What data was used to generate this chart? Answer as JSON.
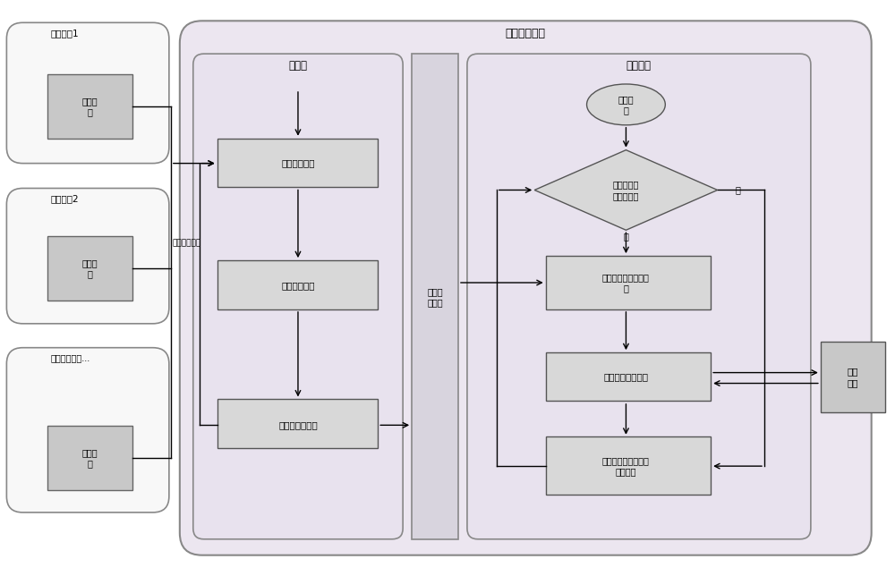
{
  "title_serial_process": "串口服务进程",
  "title_main_thread": "主线程",
  "title_output_thread": "输出线程",
  "label_user_process1": "用户进程1",
  "label_user_process2": "用户进程2",
  "label_other_process": "其它用户进程...",
  "label_output_module": "输出模\n块",
  "label_sync_output": "同步输出内容",
  "label_respond_event": "响应输入事件",
  "label_receive_input": "接收输入内容",
  "label_store_buffer": "将内容存入缓存",
  "label_data_buffer_queue": "数据缓\n存队列",
  "label_thread_start": "线程启\n动",
  "label_check_queue": "缓存队列中\n是否有数据",
  "label_yes": "是",
  "label_no": "否",
  "label_read_first": "读取队列的第一条数\n据",
  "label_output_port": "将数据输出到串口",
  "label_wait_data": "等待数据缓存队列中\n存入数据",
  "label_port_device": "串口\n设备",
  "bg_color": "#ffffff",
  "outer_facecolor": "#ece6f0",
  "main_thread_facecolor": "#e8e2ee",
  "output_thread_facecolor": "#e8e2ee",
  "databuf_facecolor": "#d8d4de",
  "user_box_facecolor": "#f8f8f8",
  "flow_box_facecolor": "#d8d8d8",
  "port_device_facecolor": "#c8c8c8",
  "figsize": [
    10.0,
    6.44
  ]
}
